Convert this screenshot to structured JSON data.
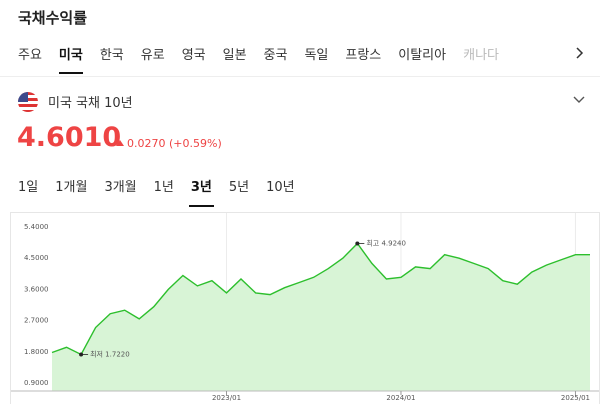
{
  "page": {
    "title": "국채수익률",
    "tabs": [
      "주요",
      "미국",
      "한국",
      "유로",
      "영국",
      "일본",
      "중국",
      "독일",
      "프랑스",
      "이탈리아",
      "캐나다"
    ],
    "selected_tab": 1,
    "instrument": "미국 국채 10년",
    "price": "4.6010",
    "change": "0.0270 (+0.59%)",
    "periods": [
      "1일",
      "1개월",
      "3개월",
      "1년",
      "3년",
      "5년",
      "10년"
    ],
    "selected_period": 4
  },
  "chart_data": {
    "type": "line",
    "x": [
      "2022/01",
      "2022/02",
      "2022/03",
      "2022/04",
      "2022/05",
      "2022/06",
      "2022/07",
      "2022/08",
      "2022/09",
      "2022/10",
      "2022/11",
      "2022/12",
      "2023/01",
      "2023/02",
      "2023/03",
      "2023/04",
      "2023/05",
      "2023/06",
      "2023/07",
      "2023/08",
      "2023/09",
      "2023/10",
      "2023/11",
      "2023/12",
      "2024/01",
      "2024/02",
      "2024/03",
      "2024/04",
      "2024/05",
      "2024/06",
      "2024/07",
      "2024/08",
      "2024/09",
      "2024/10",
      "2024/11",
      "2024/12",
      "2025/01",
      "2025/02"
    ],
    "series": [
      {
        "name": "미국 국채 10년",
        "color": "#2dbf2d",
        "fill": "#d8f4d6",
        "values": [
          1.78,
          1.93,
          1.722,
          2.5,
          2.9,
          3.0,
          2.75,
          3.1,
          3.6,
          4.0,
          3.7,
          3.85,
          3.5,
          3.9,
          3.5,
          3.45,
          3.65,
          3.8,
          3.95,
          4.2,
          4.5,
          4.924,
          4.35,
          3.9,
          3.95,
          4.25,
          4.2,
          4.6,
          4.5,
          4.35,
          4.2,
          3.85,
          3.75,
          4.1,
          4.3,
          4.45,
          4.6,
          4.601
        ]
      }
    ],
    "ylim": [
      0.9,
      5.4
    ],
    "yticks": [
      {
        "value": 5.4,
        "label": "5.4000"
      },
      {
        "value": 4.5,
        "label": "4.5000"
      },
      {
        "value": 3.6,
        "label": "3.6000"
      },
      {
        "value": 2.7,
        "label": "2.7000"
      },
      {
        "value": 1.8,
        "label": "1.8000"
      },
      {
        "value": 0.9,
        "label": "0.9000"
      }
    ],
    "xticks": [
      "2023/01",
      "2024/01",
      "2025/01"
    ],
    "annotations": [
      {
        "x": "2023/10",
        "value": 4.924,
        "label": "최고 4.9240"
      },
      {
        "x": "2022/03",
        "value": 1.722,
        "label": "최저 1.7220"
      }
    ]
  }
}
